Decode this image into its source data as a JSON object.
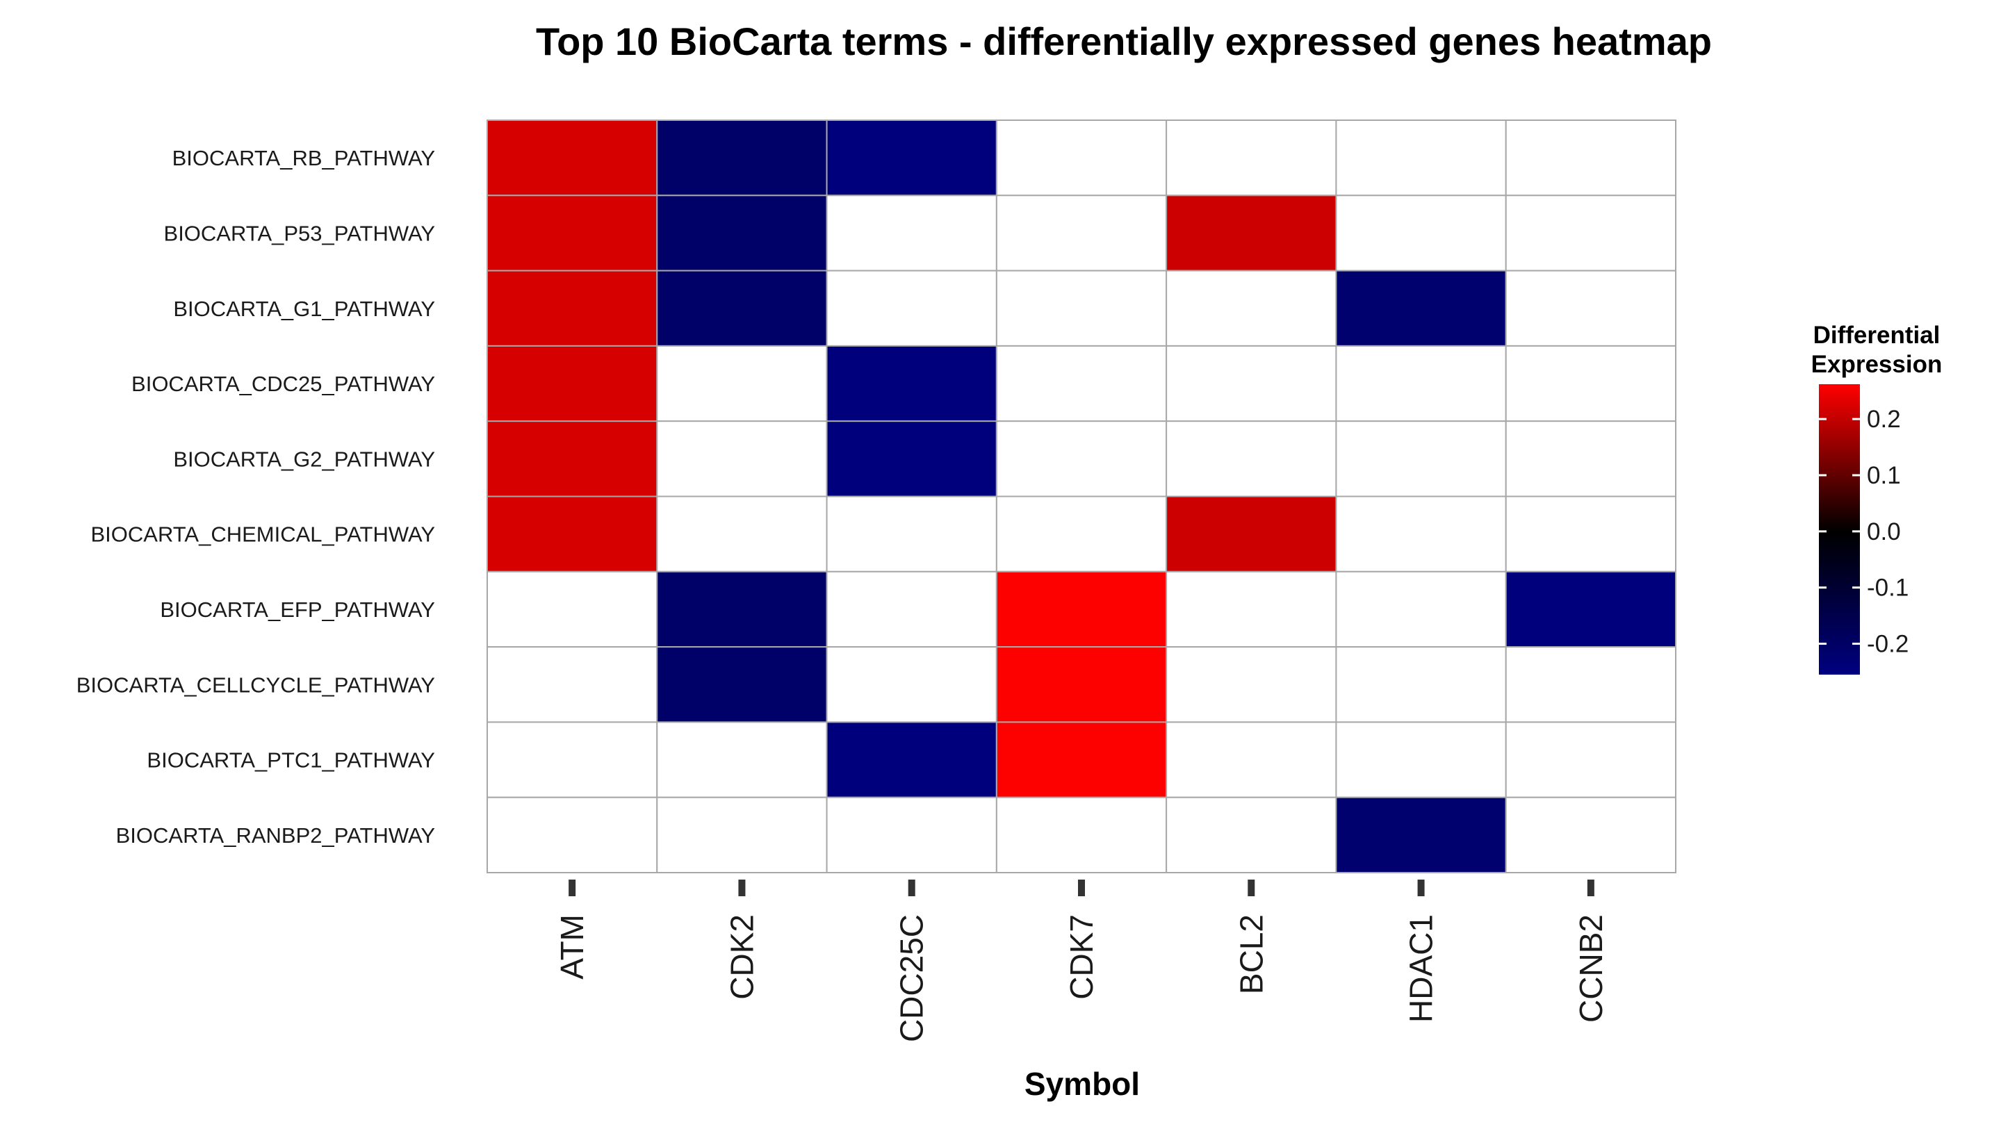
{
  "chart_data": {
    "type": "heatmap",
    "title": "Top 10 BioCarta terms - differentially expressed genes heatmap",
    "xlabel": "Symbol",
    "ylabel": "",
    "x_categories": [
      "ATM",
      "CDK2",
      "CDC25C",
      "CDK7",
      "BCL2",
      "HDAC1",
      "CCNB2"
    ],
    "y_categories": [
      "BIOCARTA_RB_PATHWAY",
      "BIOCARTA_P53_PATHWAY",
      "BIOCARTA_G1_PATHWAY",
      "BIOCARTA_CDC25_PATHWAY",
      "BIOCARTA_G2_PATHWAY",
      "BIOCARTA_CHEMICAL_PATHWAY",
      "BIOCARTA_EFP_PATHWAY",
      "BIOCARTA_CELLCYCLE_PATHWAY",
      "BIOCARTA_PTC1_PATHWAY",
      "BIOCARTA_RANBP2_PATHWAY"
    ],
    "values": [
      [
        0.22,
        -0.21,
        -0.25,
        null,
        null,
        null,
        null
      ],
      [
        0.22,
        -0.21,
        null,
        null,
        0.21,
        null,
        null
      ],
      [
        0.22,
        -0.21,
        null,
        null,
        null,
        -0.22,
        null
      ],
      [
        0.22,
        null,
        -0.25,
        null,
        null,
        null,
        null
      ],
      [
        0.22,
        null,
        -0.25,
        null,
        null,
        null,
        null
      ],
      [
        0.22,
        null,
        null,
        null,
        0.21,
        null,
        null
      ],
      [
        null,
        -0.21,
        null,
        0.26,
        null,
        null,
        -0.25
      ],
      [
        null,
        -0.21,
        null,
        0.26,
        null,
        null,
        null
      ],
      [
        null,
        null,
        -0.25,
        0.26,
        null,
        null,
        null
      ],
      [
        null,
        null,
        null,
        null,
        null,
        -0.22,
        null
      ]
    ],
    "colorbar": {
      "title_line1": "Differential",
      "title_line2": "Expression",
      "min": -0.255,
      "max": 0.262,
      "ticks": [
        {
          "value": 0.2,
          "label": "0.2"
        },
        {
          "value": 0.1,
          "label": "0.1"
        },
        {
          "value": 0.0,
          "label": "0.0"
        },
        {
          "value": -0.1,
          "label": "-0.1"
        },
        {
          "value": -0.2,
          "label": "-0.2"
        }
      ],
      "color_low": "#000080",
      "color_mid": "#000000",
      "color_high": "#ff0000"
    },
    "na_color": "#ffffff",
    "grid_color": "#a8a8a8",
    "grid": true,
    "legend_position": "right"
  }
}
